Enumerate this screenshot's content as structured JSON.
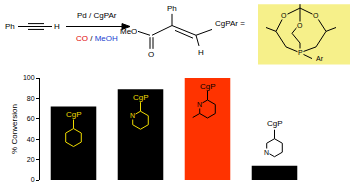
{
  "chart_data": {
    "type": "bar",
    "categories": [
      null,
      null,
      null,
      null
    ],
    "values": [
      72,
      89,
      100,
      14
    ],
    "colors": [
      "#000000",
      "#000000",
      "#ff3300",
      "#000000"
    ],
    "y_label": "% Conversion",
    "ylim": [
      0,
      100
    ],
    "yticks": [
      0,
      20,
      40,
      60,
      80,
      100
    ],
    "grid": false,
    "tick_labels": "y",
    "annotations": [
      {
        "category": 0,
        "text": "CgP"
      },
      {
        "category": 1,
        "text": "CgP"
      },
      {
        "category": 1,
        "text": "N"
      },
      {
        "category": 2,
        "text": "CgP"
      },
      {
        "category": 2,
        "text": "N"
      },
      {
        "category": 3,
        "text": "CgP"
      },
      {
        "category": 3,
        "text": "N"
      }
    ]
  },
  "scheme": {
    "reactant": [
      "Ph",
      "H"
    ],
    "above_arrow": "Pd / CgPAr",
    "below_arrow": [
      "CO",
      "/",
      "MeOH"
    ],
    "product": {
      "phenyl": "Ph",
      "ester": "MeO",
      "carbonyl": "O",
      "alkene": "H"
    },
    "definition": "CgPAr =",
    "ligand": {
      "oxygens": [
        "O",
        "O",
        "O"
      ],
      "phosphorus": "P",
      "aryl": "Ar"
    }
  }
}
